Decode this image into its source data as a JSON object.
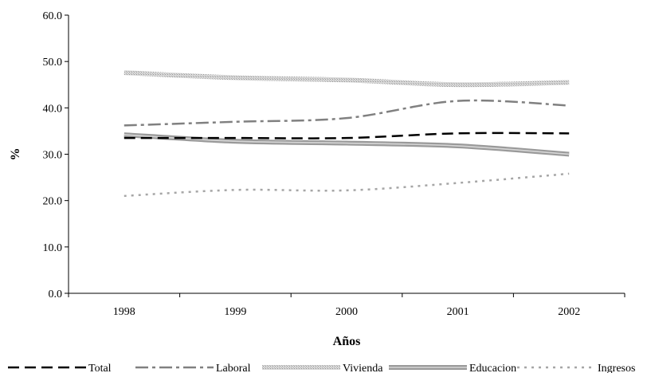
{
  "chart_data": {
    "type": "line",
    "title": "",
    "xlabel": "Años",
    "ylabel": "%",
    "categories": [
      "1998",
      "1999",
      "2000",
      "2001",
      "2002"
    ],
    "ylim": [
      0,
      60
    ],
    "yticks": [
      "0.0",
      "10.0",
      "20.0",
      "30.0",
      "40.0",
      "50.0",
      "60.0"
    ],
    "grid": false,
    "legend_position": "bottom",
    "series": [
      {
        "name": "Total",
        "values": [
          33.5,
          33.5,
          33.5,
          34.5,
          34.5
        ],
        "color": "#000000",
        "style": "dash"
      },
      {
        "name": "Laboral",
        "values": [
          36.2,
          37.0,
          37.8,
          41.5,
          40.5
        ],
        "color": "#808080",
        "style": "dashdot"
      },
      {
        "name": "Vivienda",
        "values": [
          47.6,
          46.5,
          46.0,
          45.0,
          45.5
        ],
        "color": "#d0d0d0",
        "style": "hatched"
      },
      {
        "name": "Educacion",
        "values": [
          34.2,
          32.8,
          32.4,
          31.8,
          30.0
        ],
        "color": "#a0a0a0",
        "style": "double"
      },
      {
        "name": "Ingresos",
        "values": [
          21.0,
          22.3,
          22.2,
          23.8,
          25.8
        ],
        "color": "#a6a6a6",
        "style": "dot"
      }
    ]
  }
}
